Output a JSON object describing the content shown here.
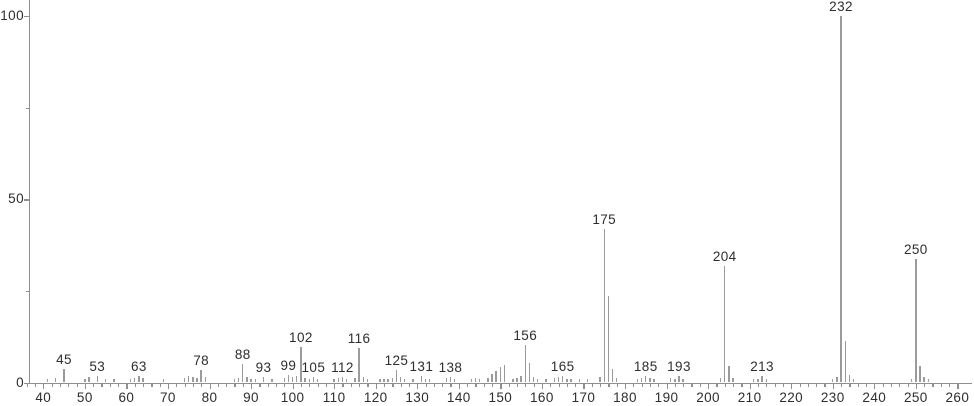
{
  "chart_data": {
    "type": "bar",
    "subtype": "mass-spectrum-stick-plot",
    "title": "",
    "xlabel": "",
    "ylabel": "",
    "legend": null,
    "grid": false,
    "x_axis": {
      "min": 40,
      "max": 260,
      "major_tick_step": 10,
      "minor_tick_step": 2,
      "tick_labels": [
        "40",
        "50",
        "60",
        "70",
        "80",
        "90",
        "100",
        "110",
        "120",
        "130",
        "140",
        "150",
        "160",
        "170",
        "180",
        "190",
        "200",
        "210",
        "220",
        "230",
        "240",
        "250",
        "260"
      ]
    },
    "y_axis": {
      "min": 0,
      "max": 100,
      "major_tick_step": 50,
      "minor_tick_step": 25,
      "tick_labels": [
        "0",
        "50",
        "100"
      ]
    },
    "peaks": [
      [
        41,
        1.0
      ],
      [
        43,
        1.2
      ],
      [
        45,
        3.8
      ],
      [
        50,
        1.0
      ],
      [
        51,
        1.4
      ],
      [
        53,
        1.8
      ],
      [
        55,
        1.0
      ],
      [
        57,
        1.0
      ],
      [
        61,
        1.0
      ],
      [
        62,
        1.3
      ],
      [
        63,
        1.8
      ],
      [
        64,
        1.2
      ],
      [
        69,
        1.0
      ],
      [
        74,
        1.2
      ],
      [
        75,
        1.8
      ],
      [
        76,
        1.4
      ],
      [
        77,
        1.2
      ],
      [
        78,
        3.4
      ],
      [
        79,
        1.4
      ],
      [
        86,
        1.0
      ],
      [
        87,
        1.2
      ],
      [
        88,
        5.0
      ],
      [
        89,
        1.5
      ],
      [
        90,
        1.0
      ],
      [
        91,
        1.0
      ],
      [
        93,
        1.4
      ],
      [
        95,
        1.0
      ],
      [
        98,
        1.1
      ],
      [
        99,
        2.1
      ],
      [
        100,
        1.4
      ],
      [
        101,
        1.7
      ],
      [
        102,
        9.6
      ],
      [
        103,
        1.3
      ],
      [
        104,
        1.0
      ],
      [
        105,
        1.5
      ],
      [
        106,
        1.0
      ],
      [
        110,
        1.0
      ],
      [
        111,
        1.2
      ],
      [
        112,
        1.5
      ],
      [
        113,
        1.0
      ],
      [
        115,
        1.3
      ],
      [
        116,
        9.5
      ],
      [
        117,
        1.5
      ],
      [
        118,
        1.0
      ],
      [
        121,
        1.0
      ],
      [
        122,
        1.0
      ],
      [
        123,
        1.0
      ],
      [
        124,
        1.2
      ],
      [
        125,
        3.4
      ],
      [
        126,
        1.4
      ],
      [
        127,
        1.0
      ],
      [
        129,
        1.0
      ],
      [
        131,
        1.9
      ],
      [
        132,
        1.0
      ],
      [
        133,
        1.0
      ],
      [
        137,
        1.1
      ],
      [
        138,
        1.5
      ],
      [
        139,
        1.0
      ],
      [
        143,
        1.0
      ],
      [
        144,
        1.1
      ],
      [
        145,
        1.0
      ],
      [
        147,
        1.3
      ],
      [
        148,
        2.3
      ],
      [
        149,
        3.2
      ],
      [
        150,
        4.1
      ],
      [
        151,
        4.9
      ],
      [
        153,
        1.0
      ],
      [
        154,
        1.3
      ],
      [
        155,
        1.8
      ],
      [
        156,
        10.3
      ],
      [
        157,
        5.4
      ],
      [
        158,
        1.5
      ],
      [
        159,
        1.0
      ],
      [
        161,
        1.0
      ],
      [
        163,
        1.3
      ],
      [
        164,
        1.5
      ],
      [
        165,
        1.7
      ],
      [
        166,
        1.0
      ],
      [
        167,
        1.0
      ],
      [
        169,
        1.0
      ],
      [
        171,
        1.0
      ],
      [
        174,
        1.5
      ],
      [
        175,
        42.0
      ],
      [
        176,
        23.6
      ],
      [
        177,
        3.8
      ],
      [
        178,
        1.2
      ],
      [
        183,
        1.0
      ],
      [
        184,
        1.3
      ],
      [
        185,
        1.8
      ],
      [
        186,
        1.3
      ],
      [
        187,
        1.0
      ],
      [
        191,
        1.3
      ],
      [
        192,
        1.0
      ],
      [
        193,
        1.7
      ],
      [
        194,
        1.0
      ],
      [
        203,
        1.3
      ],
      [
        204,
        31.8
      ],
      [
        205,
        4.4
      ],
      [
        206,
        1.3
      ],
      [
        211,
        1.0
      ],
      [
        212,
        1.0
      ],
      [
        213,
        1.8
      ],
      [
        214,
        1.0
      ],
      [
        230,
        1.0
      ],
      [
        231,
        1.5
      ],
      [
        232,
        100.0
      ],
      [
        233,
        11.4
      ],
      [
        234,
        2.0
      ],
      [
        235,
        1.0
      ],
      [
        249,
        1.0
      ],
      [
        250,
        33.6
      ],
      [
        251,
        4.4
      ],
      [
        252,
        1.5
      ],
      [
        253,
        1.0
      ]
    ],
    "labeled_peaks": [
      45,
      53,
      63,
      78,
      88,
      93,
      99,
      102,
      105,
      112,
      116,
      125,
      131,
      138,
      156,
      165,
      175,
      185,
      193,
      204,
      213,
      232,
      250
    ],
    "base_peak_mz": 232,
    "colors": {
      "background": "#ffffff",
      "axis": "#8f8f8f",
      "peak": "#9b9b9b",
      "text": "#2e2e2e"
    }
  }
}
